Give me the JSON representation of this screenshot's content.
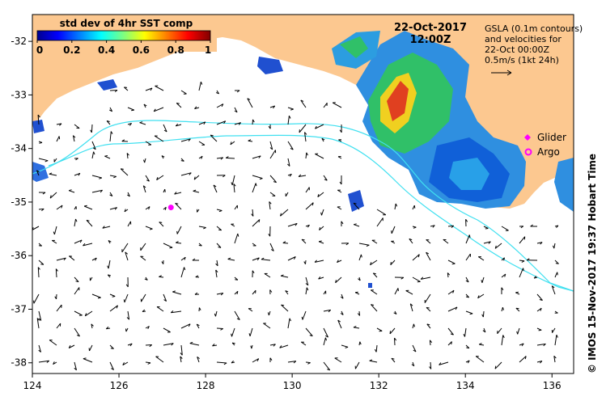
{
  "colorbar": {
    "title": "std dev of 4hr SST comp",
    "ticks": [
      "0",
      "0.2",
      "0.4",
      "0.6",
      "0.8",
      "1"
    ]
  },
  "date": "22-Oct-2017",
  "time": "12:00Z",
  "info": {
    "line1": "GSLA (0.1m contours)",
    "line2": "and velocities for",
    "line3": "22-Oct 00:00Z",
    "line4": "0.5m/s (1kt 24h)"
  },
  "legend": {
    "glider": "Glider",
    "argo": "Argo"
  },
  "credit": "© IMOS 15-Nov-2017 19:37 Hobart Time",
  "axes": {
    "x_ticks": [
      "124",
      "126",
      "128",
      "130",
      "132",
      "134",
      "136"
    ],
    "y_ticks": [
      "-32",
      "-33",
      "-34",
      "-35",
      "-36",
      "-37",
      "-38"
    ]
  },
  "colors": {
    "land": "#fcc890",
    "contour": "#40e0f0",
    "marker": "#ff00ff"
  },
  "argo_float": {
    "lon": 127.2,
    "lat": -35.1
  }
}
